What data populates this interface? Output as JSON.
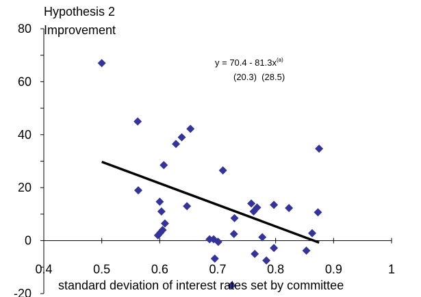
{
  "chart_data": {
    "type": "scatter",
    "title": "Hypothesis 2",
    "ylabel": "Improvement",
    "xlabel": "standard deviation of interest rates set by committee",
    "xlim": [
      0.4,
      1
    ],
    "ylim": [
      -20,
      80
    ],
    "x_ticks": [
      "0.4",
      "0.5",
      "0.6",
      "0.7",
      "0.8",
      "0.9",
      "1"
    ],
    "y_ticks": [
      "-20",
      "0",
      "20",
      "40",
      "60",
      "80"
    ],
    "grid": false,
    "legend": "none",
    "marker_color": "#33339A",
    "line_color": "#000000",
    "annotation": {
      "equation": "y = 70.4 - 81.3x",
      "superscript": "(a)",
      "std_errors": "(20.3)  (28.5)"
    },
    "fit_line": {
      "intercept": 70.4,
      "slope": -81.3,
      "x_range": [
        0.5,
        0.875
      ]
    },
    "points": [
      {
        "x": 0.5,
        "y": 67
      },
      {
        "x": 0.562,
        "y": 45
      },
      {
        "x": 0.563,
        "y": 19
      },
      {
        "x": 0.597,
        "y": 2
      },
      {
        "x": 0.6,
        "y": 14.7
      },
      {
        "x": 0.601,
        "y": 3
      },
      {
        "x": 0.603,
        "y": 11
      },
      {
        "x": 0.605,
        "y": 4
      },
      {
        "x": 0.607,
        "y": 28.5
      },
      {
        "x": 0.609,
        "y": 6.5
      },
      {
        "x": 0.628,
        "y": 36.5
      },
      {
        "x": 0.638,
        "y": 39
      },
      {
        "x": 0.647,
        "y": 13
      },
      {
        "x": 0.653,
        "y": 42.2
      },
      {
        "x": 0.686,
        "y": 0.5
      },
      {
        "x": 0.693,
        "y": 0.5
      },
      {
        "x": 0.695,
        "y": -6.8
      },
      {
        "x": 0.701,
        "y": -0.5
      },
      {
        "x": 0.709,
        "y": 26.5
      },
      {
        "x": 0.724,
        "y": -17
      },
      {
        "x": 0.728,
        "y": 2.5
      },
      {
        "x": 0.729,
        "y": 8.5
      },
      {
        "x": 0.758,
        "y": 14
      },
      {
        "x": 0.762,
        "y": 11
      },
      {
        "x": 0.764,
        "y": -5
      },
      {
        "x": 0.768,
        "y": 12.5
      },
      {
        "x": 0.777,
        "y": 1.3
      },
      {
        "x": 0.784,
        "y": -7.5
      },
      {
        "x": 0.797,
        "y": 13.5
      },
      {
        "x": 0.797,
        "y": -2.8
      },
      {
        "x": 0.823,
        "y": 12.3
      },
      {
        "x": 0.853,
        "y": -3.8
      },
      {
        "x": 0.863,
        "y": 2.8
      },
      {
        "x": 0.873,
        "y": 10.7
      },
      {
        "x": 0.875,
        "y": 34.7
      }
    ]
  }
}
